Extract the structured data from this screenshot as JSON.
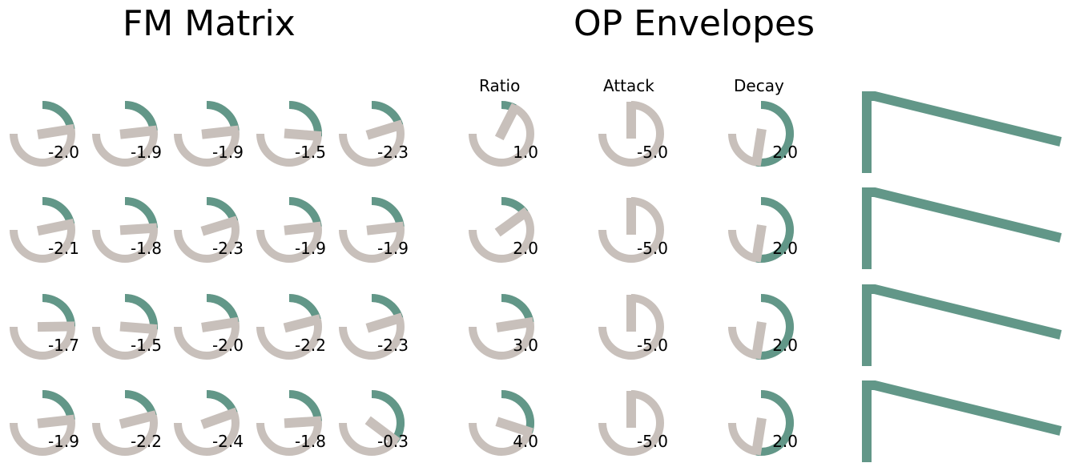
{
  "colors": {
    "accent": "#629788",
    "track": "#c8c0bb",
    "background": "#ffffff",
    "text": "#000000"
  },
  "titles": {
    "fm_matrix": "FM Matrix",
    "op_envelopes": "OP Envelopes"
  },
  "column_labels": {
    "ratio": "Ratio",
    "attack": "Attack",
    "decay": "Decay"
  },
  "fm_matrix": [
    [
      "-2.0",
      "-1.9",
      "-1.9",
      "-1.5",
      "-2.3"
    ],
    [
      "-2.1",
      "-1.8",
      "-2.3",
      "-1.9",
      "-1.9"
    ],
    [
      "-1.7",
      "-1.5",
      "-2.0",
      "-2.2",
      "-2.3"
    ],
    [
      "-1.9",
      "-2.2",
      "-2.4",
      "-1.8",
      "-0.3"
    ]
  ],
  "operators": [
    {
      "ratio": "1.0",
      "attack": "-5.0",
      "decay": "2.0"
    },
    {
      "ratio": "2.0",
      "attack": "-5.0",
      "decay": "2.0"
    },
    {
      "ratio": "3.0",
      "attack": "-5.0",
      "decay": "2.0"
    },
    {
      "ratio": "4.0",
      "attack": "-5.0",
      "decay": "2.0"
    }
  ],
  "knob_ranges": {
    "fm_matrix": [
      -5,
      5
    ],
    "ratio": [
      0,
      10
    ],
    "attack": [
      -5,
      5
    ],
    "decay": [
      -5,
      5
    ]
  },
  "envelope_icon": "envelope-shape-icon"
}
